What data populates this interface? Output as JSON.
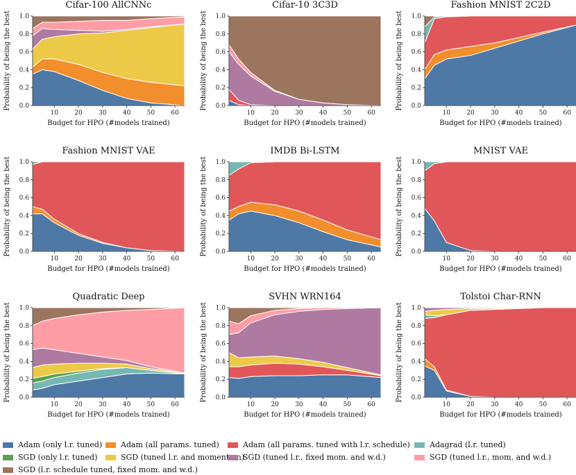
{
  "colors": {
    "adam_lr": "#4e79a7",
    "adam_all": "#f28e2b",
    "adam_sched": "#e15759",
    "adagrad": "#76b7b2",
    "sgd_lr": "#59a14f",
    "sgd_mom": "#edc948",
    "sgd_fixed": "#af7aa1",
    "sgd_wd": "#ff9da7",
    "sgd_sched": "#9c755f"
  },
  "legend": [
    {
      "key": "adam_lr",
      "label": "Adam (only l.r. tuned)"
    },
    {
      "key": "adam_all",
      "label": "Adam (all params. tuned)"
    },
    {
      "key": "adam_sched",
      "label": "Adam (all params. tuned with l.r. schedule)"
    },
    {
      "key": "adagrad",
      "label": "Adagrad (l.r. tuned)"
    },
    {
      "key": "sgd_lr",
      "label": "SGD (only l.r. tuned)"
    },
    {
      "key": "sgd_mom",
      "label": "SGD (tuned l.r. and momentum)"
    },
    {
      "key": "sgd_fixed",
      "label": "SGD (tuned l.r., fixed mom. and w.d.)"
    },
    {
      "key": "sgd_wd",
      "label": "SGD (tuned l.r., mom. and w.d.)"
    },
    {
      "key": "sgd_sched",
      "label": "SGD (l.r. schedule tuned, fixed mom. and w.d.)"
    }
  ],
  "axes": {
    "xlabel": "Budget for HPO (#models trained)",
    "ylabel": "Probability of being the best",
    "xticks": [
      "10",
      "20",
      "30",
      "40",
      "50",
      "60"
    ],
    "yticks": [
      "0.0",
      "0.2",
      "0.4",
      "0.6",
      "0.8",
      "1.0"
    ]
  },
  "chart_data": [
    {
      "type": "area",
      "title": "Cifar-100 AllCNNc",
      "xlim": [
        1,
        64
      ],
      "ylim": [
        0,
        1
      ],
      "x": [
        1,
        5,
        10,
        20,
        30,
        40,
        50,
        64
      ],
      "series": [
        {
          "key": "adam_lr",
          "values": [
            0.35,
            0.4,
            0.38,
            0.28,
            0.17,
            0.08,
            0.03,
            0.0
          ]
        },
        {
          "key": "adam_all",
          "values": [
            0.08,
            0.12,
            0.14,
            0.18,
            0.2,
            0.22,
            0.23,
            0.22
          ]
        },
        {
          "key": "sgd_mom",
          "values": [
            0.2,
            0.22,
            0.25,
            0.34,
            0.44,
            0.54,
            0.61,
            0.69
          ]
        },
        {
          "key": "sgd_fixed",
          "values": [
            0.15,
            0.12,
            0.08,
            0.04,
            0.02,
            0.01,
            0.01,
            0.0
          ]
        },
        {
          "key": "sgd_wd",
          "values": [
            0.08,
            0.07,
            0.08,
            0.1,
            0.12,
            0.1,
            0.09,
            0.08
          ]
        },
        {
          "key": "sgd_sched",
          "values": [
            0.14,
            0.07,
            0.07,
            0.06,
            0.05,
            0.05,
            0.03,
            0.01
          ]
        }
      ]
    },
    {
      "type": "area",
      "title": "Cifar-10 3C3D",
      "xlim": [
        1,
        64
      ],
      "ylim": [
        0,
        1
      ],
      "x": [
        1,
        5,
        10,
        20,
        30,
        40,
        50,
        64
      ],
      "series": [
        {
          "key": "adam_lr",
          "values": [
            0.06,
            0.01,
            0.0,
            0.0,
            0.0,
            0.0,
            0.0,
            0.0
          ]
        },
        {
          "key": "adam_sched",
          "values": [
            0.12,
            0.05,
            0.01,
            0.0,
            0.0,
            0.0,
            0.0,
            0.0
          ]
        },
        {
          "key": "sgd_fixed",
          "values": [
            0.42,
            0.4,
            0.32,
            0.16,
            0.07,
            0.03,
            0.01,
            0.0
          ]
        },
        {
          "key": "sgd_wd",
          "values": [
            0.08,
            0.06,
            0.04,
            0.01,
            0.0,
            0.0,
            0.0,
            0.0
          ]
        },
        {
          "key": "sgd_sched",
          "values": [
            0.32,
            0.48,
            0.63,
            0.83,
            0.93,
            0.97,
            0.99,
            1.0
          ]
        }
      ]
    },
    {
      "type": "area",
      "title": "Fashion MNIST 2C2D",
      "xlim": [
        1,
        64
      ],
      "ylim": [
        0,
        1
      ],
      "x": [
        1,
        5,
        10,
        20,
        30,
        40,
        50,
        64
      ],
      "series": [
        {
          "key": "adam_lr",
          "values": [
            0.3,
            0.45,
            0.52,
            0.56,
            0.64,
            0.72,
            0.8,
            0.9
          ]
        },
        {
          "key": "adam_all",
          "values": [
            0.1,
            0.12,
            0.1,
            0.1,
            0.06,
            0.04,
            0.02,
            0.0
          ]
        },
        {
          "key": "adam_sched",
          "values": [
            0.3,
            0.4,
            0.37,
            0.34,
            0.3,
            0.24,
            0.18,
            0.1
          ]
        },
        {
          "key": "adagrad",
          "values": [
            0.18,
            0.02,
            0.01,
            0.0,
            0.0,
            0.0,
            0.0,
            0.0
          ]
        },
        {
          "key": "sgd_sched",
          "values": [
            0.12,
            0.01,
            0.0,
            0.0,
            0.0,
            0.0,
            0.0,
            0.0
          ]
        }
      ]
    },
    {
      "type": "area",
      "title": "Fashion MNIST VAE",
      "xlim": [
        1,
        64
      ],
      "ylim": [
        0,
        1
      ],
      "x": [
        1,
        5,
        10,
        20,
        30,
        40,
        50,
        64
      ],
      "series": [
        {
          "key": "adam_lr",
          "values": [
            0.42,
            0.42,
            0.32,
            0.18,
            0.09,
            0.04,
            0.01,
            0.0
          ]
        },
        {
          "key": "adam_all",
          "values": [
            0.08,
            0.05,
            0.04,
            0.02,
            0.01,
            0.0,
            0.0,
            0.0
          ]
        },
        {
          "key": "adam_sched",
          "values": [
            0.47,
            0.53,
            0.64,
            0.8,
            0.9,
            0.96,
            0.99,
            1.0
          ]
        },
        {
          "key": "adagrad",
          "values": [
            0.03,
            0.0,
            0.0,
            0.0,
            0.0,
            0.0,
            0.0,
            0.0
          ]
        }
      ]
    },
    {
      "type": "area",
      "title": "IMDB Bi-LSTM",
      "xlim": [
        1,
        64
      ],
      "ylim": [
        0,
        1
      ],
      "x": [
        1,
        5,
        10,
        20,
        30,
        40,
        50,
        64
      ],
      "series": [
        {
          "key": "adam_lr",
          "values": [
            0.35,
            0.42,
            0.45,
            0.4,
            0.32,
            0.22,
            0.13,
            0.05
          ]
        },
        {
          "key": "adam_all",
          "values": [
            0.1,
            0.08,
            0.1,
            0.12,
            0.13,
            0.13,
            0.11,
            0.08
          ]
        },
        {
          "key": "adam_sched",
          "values": [
            0.4,
            0.42,
            0.44,
            0.48,
            0.55,
            0.65,
            0.76,
            0.87
          ]
        },
        {
          "key": "adagrad",
          "values": [
            0.15,
            0.08,
            0.01,
            0.0,
            0.0,
            0.0,
            0.0,
            0.0
          ]
        }
      ]
    },
    {
      "type": "area",
      "title": "MNIST VAE",
      "xlim": [
        1,
        64
      ],
      "ylim": [
        0,
        1
      ],
      "x": [
        1,
        5,
        10,
        20,
        30,
        40,
        50,
        64
      ],
      "series": [
        {
          "key": "adam_lr",
          "values": [
            0.48,
            0.34,
            0.1,
            0.01,
            0.0,
            0.0,
            0.0,
            0.0
          ]
        },
        {
          "key": "adam_sched",
          "values": [
            0.42,
            0.64,
            0.9,
            0.99,
            1.0,
            1.0,
            1.0,
            1.0
          ]
        },
        {
          "key": "adagrad",
          "values": [
            0.1,
            0.02,
            0.0,
            0.0,
            0.0,
            0.0,
            0.0,
            0.0
          ]
        }
      ]
    },
    {
      "type": "area",
      "title": "Quadratic Deep",
      "xlim": [
        1,
        64
      ],
      "ylim": [
        0,
        1
      ],
      "x": [
        1,
        5,
        10,
        20,
        30,
        40,
        50,
        64
      ],
      "series": [
        {
          "key": "adam_lr",
          "values": [
            0.08,
            0.1,
            0.14,
            0.18,
            0.22,
            0.26,
            0.27,
            0.26
          ]
        },
        {
          "key": "adagrad",
          "values": [
            0.08,
            0.08,
            0.08,
            0.09,
            0.09,
            0.07,
            0.03,
            0.0
          ]
        },
        {
          "key": "sgd_lr",
          "values": [
            0.05,
            0.05,
            0.04,
            0.02,
            0.01,
            0.0,
            0.0,
            0.0
          ]
        },
        {
          "key": "sgd_mom",
          "values": [
            0.12,
            0.13,
            0.11,
            0.09,
            0.06,
            0.04,
            0.02,
            0.01
          ]
        },
        {
          "key": "sgd_fixed",
          "values": [
            0.2,
            0.19,
            0.16,
            0.11,
            0.07,
            0.04,
            0.02,
            0.0
          ]
        },
        {
          "key": "sgd_wd",
          "values": [
            0.27,
            0.3,
            0.35,
            0.43,
            0.5,
            0.56,
            0.64,
            0.73
          ]
        },
        {
          "key": "sgd_sched",
          "values": [
            0.2,
            0.15,
            0.12,
            0.08,
            0.05,
            0.03,
            0.02,
            0.0
          ]
        }
      ]
    },
    {
      "type": "area",
      "title": "SVHN WRN164",
      "xlim": [
        1,
        64
      ],
      "ylim": [
        0,
        1
      ],
      "x": [
        1,
        5,
        10,
        20,
        30,
        40,
        50,
        64
      ],
      "series": [
        {
          "key": "adam_lr",
          "values": [
            0.22,
            0.21,
            0.23,
            0.24,
            0.24,
            0.25,
            0.25,
            0.22
          ]
        },
        {
          "key": "adam_sched",
          "values": [
            0.12,
            0.13,
            0.13,
            0.14,
            0.13,
            0.09,
            0.05,
            0.02
          ]
        },
        {
          "key": "sgd_mom",
          "values": [
            0.16,
            0.1,
            0.09,
            0.08,
            0.06,
            0.05,
            0.03,
            0.01
          ]
        },
        {
          "key": "sgd_fixed",
          "values": [
            0.2,
            0.28,
            0.38,
            0.46,
            0.53,
            0.59,
            0.66,
            0.75
          ]
        },
        {
          "key": "sgd_wd",
          "values": [
            0.15,
            0.1,
            0.08,
            0.05,
            0.03,
            0.02,
            0.01,
            0.0
          ]
        },
        {
          "key": "sgd_sched",
          "values": [
            0.15,
            0.18,
            0.09,
            0.03,
            0.01,
            0.0,
            0.0,
            0.0
          ]
        }
      ]
    },
    {
      "type": "area",
      "title": "Tolstoi Char-RNN",
      "xlim": [
        1,
        64
      ],
      "ylim": [
        0,
        1
      ],
      "x": [
        1,
        5,
        10,
        20,
        30,
        40,
        50,
        64
      ],
      "series": [
        {
          "key": "adam_lr",
          "values": [
            0.35,
            0.3,
            0.07,
            0.01,
            0.0,
            0.0,
            0.0,
            0.0
          ]
        },
        {
          "key": "adam_all",
          "values": [
            0.08,
            0.04,
            0.01,
            0.0,
            0.0,
            0.0,
            0.0,
            0.0
          ]
        },
        {
          "key": "adam_sched",
          "values": [
            0.45,
            0.55,
            0.84,
            0.96,
            0.98,
            0.99,
            1.0,
            1.0
          ]
        },
        {
          "key": "adagrad",
          "values": [
            0.04,
            0.02,
            0.0,
            0.0,
            0.0,
            0.0,
            0.0,
            0.0
          ]
        },
        {
          "key": "sgd_mom",
          "values": [
            0.04,
            0.06,
            0.06,
            0.02,
            0.01,
            0.01,
            0.0,
            0.0
          ]
        },
        {
          "key": "sgd_fixed",
          "values": [
            0.04,
            0.03,
            0.02,
            0.01,
            0.01,
            0.0,
            0.0,
            0.0
          ]
        }
      ]
    }
  ]
}
